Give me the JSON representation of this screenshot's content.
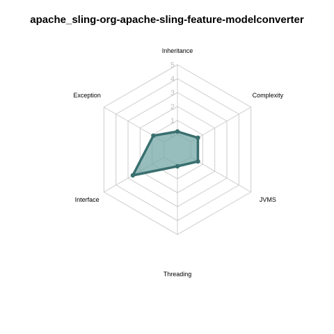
{
  "chart_data": {
    "type": "radar",
    "title": "apache_sling-org-apache-sling-feature-modelconverter",
    "axes": [
      "Inheritance",
      "Complexity",
      "JVMS",
      "Threading",
      "Interface",
      "Exception"
    ],
    "series": [
      {
        "values": [
          0.2,
          0.6,
          0.6,
          0.1,
          2.6,
          0.9
        ]
      }
    ],
    "rlim": [
      0,
      5
    ],
    "ticks": [
      "0",
      "1",
      "2",
      "3",
      "4",
      "5"
    ],
    "grid": true,
    "colors": {
      "series_line": "#3a6f6f",
      "series_fill": "#74a7a7"
    }
  }
}
